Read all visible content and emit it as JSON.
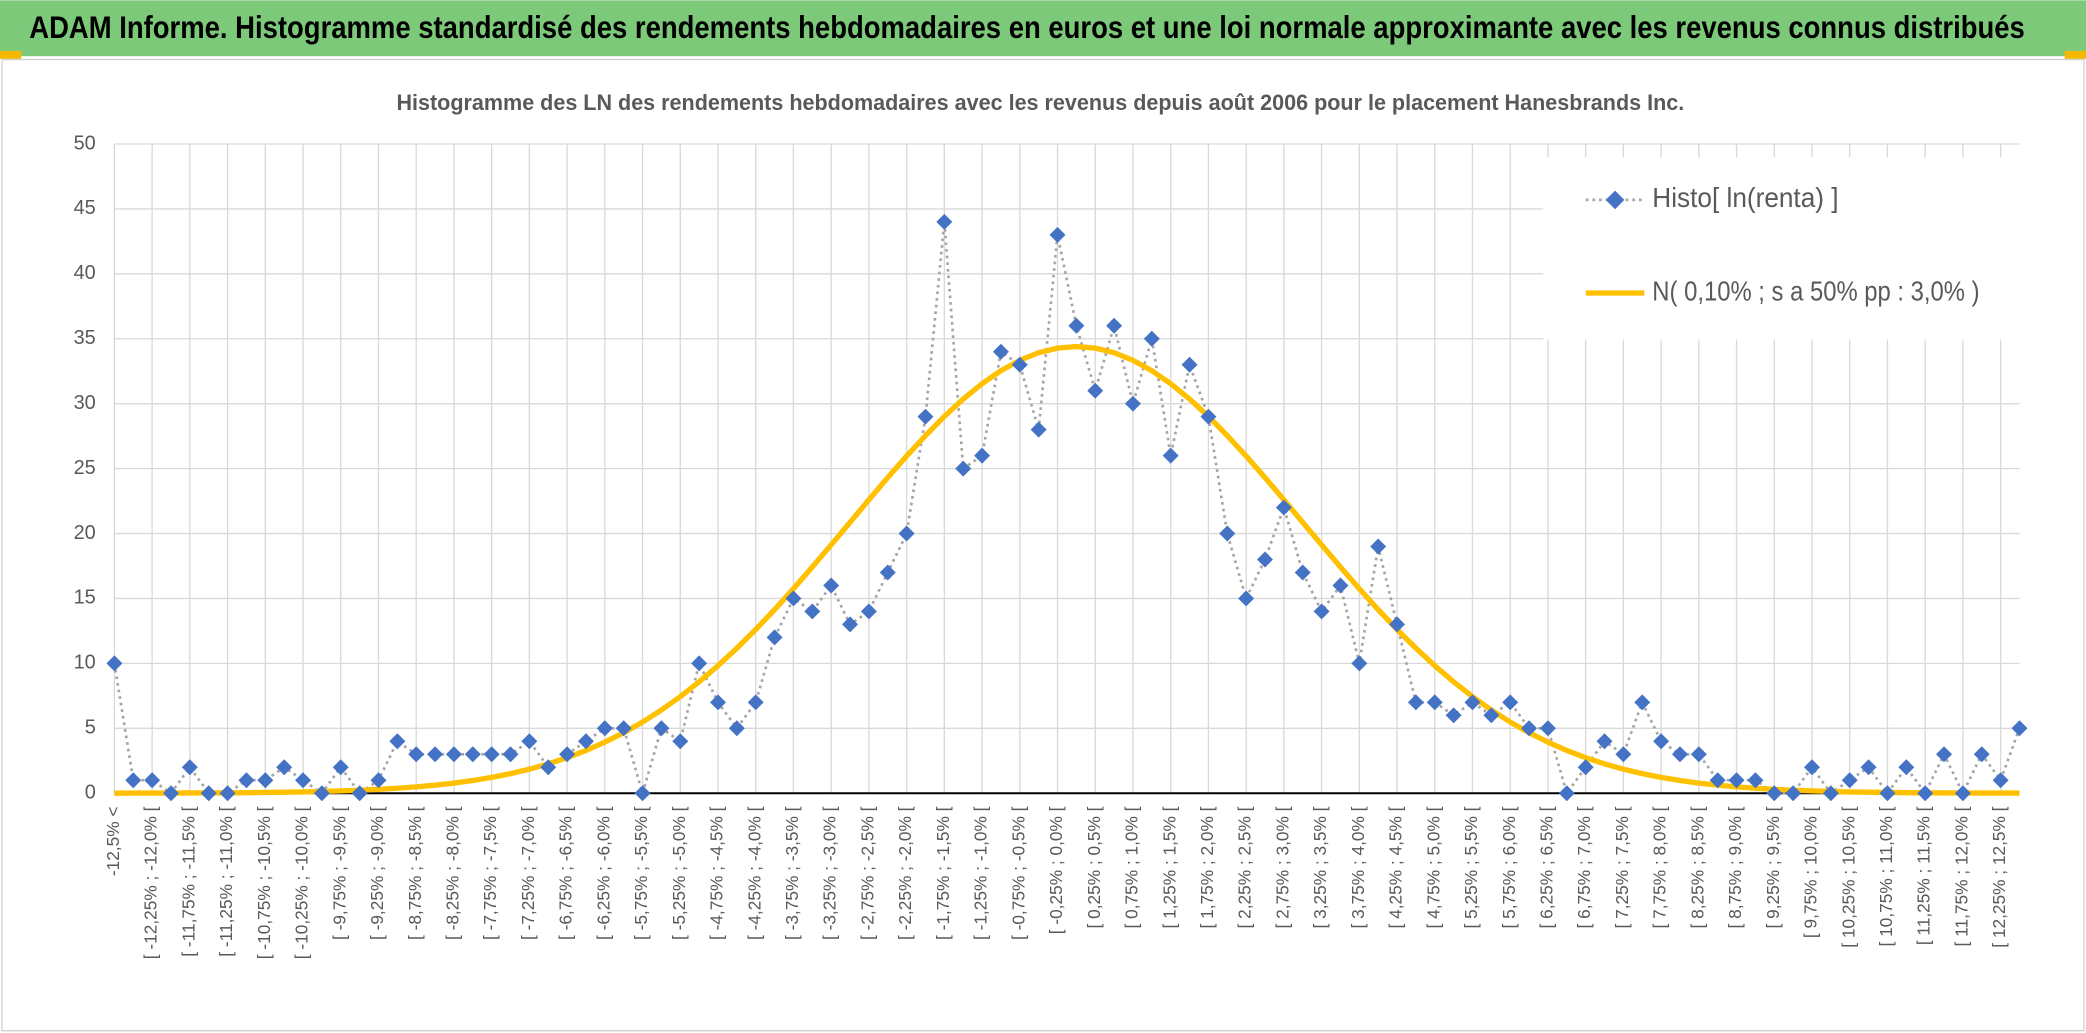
{
  "chart_data": {
    "type": "line",
    "title": "ADAM Informe. Histogramme standardisé des rendements hebdomadaires en euros et une loi normale approximante avec les revenus connus distribués",
    "subtitle": "Histogramme des LN des rendements hebdomadaires avec les revenus depuis août 2006 pour le placement Hanesbrands Inc.",
    "categories": [
      "-12,5% <",
      null,
      "[ -12,25% ; -12,0% [",
      null,
      "[ -11,75% ; -11,5% [",
      null,
      "[ -11,25% ; -11,0% [",
      null,
      "[ -10,75% ; -10,5% [",
      null,
      "[ -10,25% ; -10,0% [",
      null,
      "[ -9,75% ; -9,5% [",
      null,
      "[ -9,25% ; -9,0% [",
      null,
      "[ -8,75% ; -8,5% [",
      null,
      "[ -8,25% ; -8,0% [",
      null,
      "[ -7,75% ; -7,5% [",
      null,
      "[ -7,25% ; -7,0% [",
      null,
      "[ -6,75% ; -6,5% [",
      null,
      "[ -6,25% ; -6,0% [",
      null,
      "[ -5,75% ; -5,5% [",
      null,
      "[ -5,25% ; -5,0% [",
      null,
      "[ -4,75% ; -4,5% [",
      null,
      "[ -4,25% ; -4,0% [",
      null,
      "[ -3,75% ; -3,5% [",
      null,
      "[ -3,25% ; -3,0% [",
      null,
      "[ -2,75% ; -2,5% [",
      null,
      "[ -2,25% ; -2,0% [",
      null,
      "[ -1,75% ; -1,5% [",
      null,
      "[ -1,25% ; -1,0% [",
      null,
      "[ -0,75% ; -0,5% [",
      null,
      "[ -0,25% ; 0,0% [",
      null,
      "[ 0,25% ; 0,5% [",
      null,
      "[ 0,75% ; 1,0% [",
      null,
      "[ 1,25% ; 1,5% [",
      null,
      "[ 1,75% ; 2,0% [",
      null,
      "[ 2,25% ; 2,5% [",
      null,
      "[ 2,75% ; 3,0% [",
      null,
      "[ 3,25% ; 3,5% [",
      null,
      "[ 3,75% ; 4,0% [",
      null,
      "[ 4,25% ; 4,5% [",
      null,
      "[ 4,75% ; 5,0% [",
      null,
      "[ 5,25% ; 5,5% [",
      null,
      "[ 5,75% ; 6,0% [",
      null,
      "[ 6,25% ; 6,5% [",
      null,
      "[ 6,75% ; 7,0% [",
      null,
      "[ 7,25% ; 7,5% [",
      null,
      "[ 7,75% ; 8,0% [",
      null,
      "[ 8,25% ; 8,5% [",
      null,
      "[ 8,75% ; 9,0% [",
      null,
      "[ 9,25% ; 9,5% [",
      null,
      "[ 9,75% ; 10,0% [",
      null,
      "[ 10,25% ; 10,5% [",
      null,
      "[ 10,75% ; 11,0% [",
      null,
      "[ 11,25% ; 11,5% [",
      null,
      "[ 11,75% ; 12,0% [",
      null,
      "[ 12,25% ; 12,5% [",
      null
    ],
    "series": [
      {
        "name": "Histo[ ln(renta) ]",
        "color": "#4472c4",
        "line_color": "#a5a5a5",
        "values": [
          10,
          1,
          1,
          0,
          2,
          0,
          0,
          1,
          1,
          2,
          1,
          0,
          2,
          0,
          1,
          4,
          3,
          3,
          3,
          3,
          3,
          3,
          4,
          2,
          3,
          4,
          5,
          5,
          0,
          5,
          4,
          10,
          7,
          5,
          7,
          12,
          15,
          14,
          16,
          13,
          14,
          17,
          20,
          29,
          44,
          25,
          26,
          34,
          33,
          28,
          43,
          36,
          31,
          36,
          30,
          35,
          26,
          33,
          29,
          20,
          15,
          18,
          22,
          17,
          14,
          16,
          10,
          19,
          13,
          7,
          7,
          6,
          7,
          6,
          7,
          5,
          5,
          0,
          2,
          4,
          3,
          7,
          4,
          3,
          3,
          1,
          1,
          1,
          0,
          0,
          2,
          0,
          1,
          2,
          0,
          2,
          0,
          3,
          0,
          3,
          1,
          5
        ]
      },
      {
        "name": "N( 0,10% ; s a 50% pp : 3,0% )",
        "color": "#ffc000",
        "values": [
          0,
          0.01,
          0.01,
          0.01,
          0.02,
          0.02,
          0.03,
          0.04,
          0.06,
          0.08,
          0.1,
          0.13,
          0.18,
          0.23,
          0.3,
          0.38,
          0.49,
          0.62,
          0.78,
          0.98,
          1.22,
          1.51,
          1.85,
          2.26,
          2.74,
          3.29,
          3.93,
          4.66,
          5.48,
          6.41,
          7.44,
          8.58,
          9.82,
          11.17,
          12.61,
          14.14,
          15.75,
          17.42,
          19.13,
          20.86,
          22.6,
          24.31,
          25.97,
          27.54,
          29.02,
          30.36,
          31.54,
          32.54,
          33.34,
          33.93,
          34.28,
          34.4,
          34.28,
          33.93,
          33.34,
          32.54,
          31.54,
          30.36,
          29.02,
          27.54,
          25.97,
          24.31,
          22.6,
          20.86,
          19.13,
          17.42,
          15.75,
          14.14,
          12.61,
          11.17,
          9.82,
          8.58,
          7.44,
          6.41,
          5.48,
          4.66,
          3.93,
          3.29,
          2.74,
          2.26,
          1.85,
          1.51,
          1.22,
          0.98,
          0.78,
          0.62,
          0.49,
          0.38,
          0.3,
          0.23,
          0.18,
          0.13,
          0.1,
          0.08,
          0.06,
          0.04,
          0.03,
          0.02,
          0.02,
          0.01,
          0.01,
          0.01
        ]
      }
    ],
    "ylim": [
      0,
      50
    ],
    "yticks": [
      0,
      5,
      10,
      15,
      20,
      25,
      30,
      35,
      40,
      45,
      50
    ],
    "grid": true,
    "legend": "top-right"
  }
}
